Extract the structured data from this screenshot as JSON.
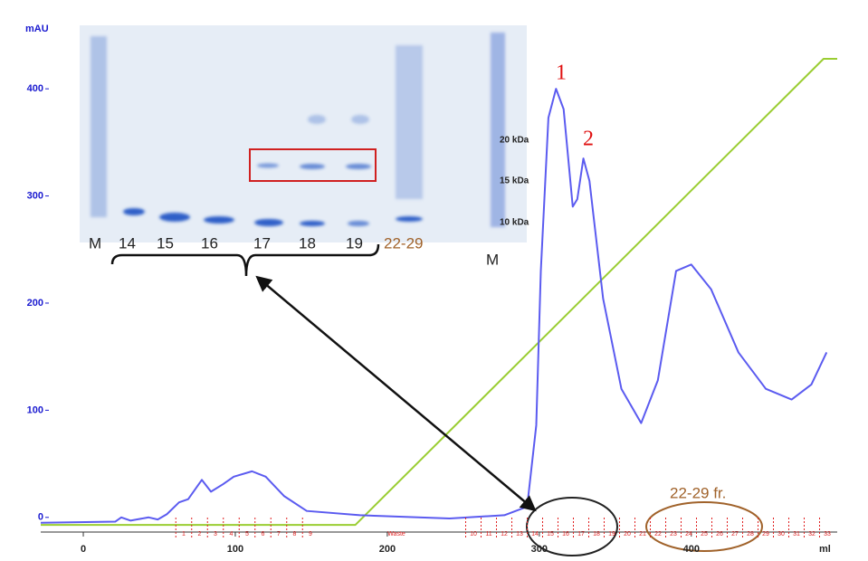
{
  "chart_data": {
    "type": "line",
    "y_label": "mAU",
    "x_label": "ml",
    "xlim": [
      -28,
      496
    ],
    "ylim": [
      -12,
      466
    ],
    "xticks": [
      0,
      100,
      200,
      300,
      400
    ],
    "yticks": [
      0,
      100,
      200,
      300,
      400
    ],
    "series": [
      {
        "color": "#5b5bf0",
        "x": [
          -28,
          21,
          25,
          31,
          43,
          49,
          55,
          63,
          69,
          78,
          84,
          92,
          99,
          111,
          120,
          132,
          147,
          182,
          241,
          277,
          292,
          298,
          301,
          306,
          311,
          316,
          322,
          325,
          329,
          333,
          342,
          354,
          367,
          378,
          390,
          400,
          413,
          431,
          449,
          466,
          479,
          489
        ],
        "values": [
          -5,
          -4,
          0,
          -3,
          0,
          -2,
          3,
          14,
          17,
          35,
          24,
          31,
          38,
          43,
          38,
          20,
          6,
          2,
          -1,
          2,
          10,
          86,
          230,
          373,
          400,
          381,
          290,
          297,
          335,
          314,
          204,
          120,
          88,
          128,
          230,
          236,
          213,
          154,
          120,
          110,
          124,
          154
        ]
      },
      {
        "color": "#9acd32",
        "x": [
          -28,
          179,
          487,
          496
        ],
        "values": [
          -7,
          -7,
          428,
          428
        ]
      }
    ],
    "fractions_a": [
      "1",
      "2",
      "3",
      "4",
      "5",
      "6",
      "7",
      "8",
      "9"
    ],
    "waste": "Waste",
    "fractions_b": [
      "10",
      "11",
      "12",
      "13",
      "14",
      "15",
      "16",
      "17",
      "18",
      "19",
      "20",
      "21",
      "22",
      "23",
      "24",
      "25",
      "26",
      "27",
      "28",
      "29",
      "30",
      "31",
      "32",
      "33"
    ],
    "peak_1": "1",
    "peak_2": "2",
    "pool_label": "22-29 fr.",
    "gel": {
      "lanes": [
        "M",
        "14",
        "15",
        "16",
        "17",
        "18",
        "19",
        "22-29",
        "M"
      ],
      "markers": [
        "20 kDa",
        "15 kDa",
        "10 kDa"
      ]
    }
  }
}
